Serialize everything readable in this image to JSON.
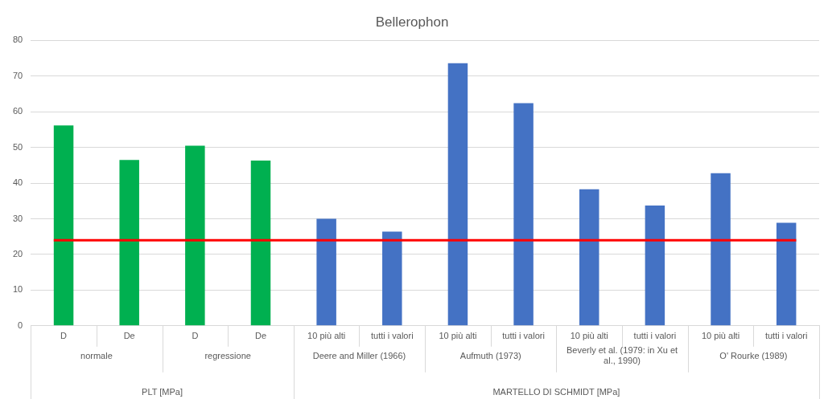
{
  "chart_data": {
    "type": "bar",
    "title": "Bellerophon",
    "categories": [
      "D",
      "De",
      "D",
      "De",
      "10 più alti",
      "tutti i valori",
      "10 più alti",
      "tutti i valori",
      "10 più alti",
      "tutti i valori",
      "10 più alti",
      "tutti i valori"
    ],
    "values": [
      56.2,
      46.5,
      50.5,
      46.3,
      30.0,
      26.4,
      73.6,
      62.4,
      38.3,
      33.7,
      42.8,
      28.9
    ],
    "colors": [
      "#00b050",
      "#00b050",
      "#00b050",
      "#00b050",
      "#4472c4",
      "#4472c4",
      "#4472c4",
      "#4472c4",
      "#4472c4",
      "#4472c4",
      "#4472c4",
      "#4472c4"
    ],
    "ylim": [
      0,
      80
    ],
    "yticks": [
      0,
      10,
      20,
      30,
      40,
      50,
      60,
      70,
      80
    ],
    "grid": "y",
    "ref_lines": [
      {
        "axis": "y",
        "value": 24,
        "color": "#ff0000"
      }
    ],
    "annotations": [
      "normale",
      "regressione",
      "Deere and Miller (1966)",
      "Aufmuth (1973)",
      "Beverly et al. (1979: in Xu et al., 1990)",
      "O' Rourke (1989)",
      "PLT [MPa]",
      "MARTELLO DI SCHMIDT [MPa]"
    ]
  }
}
